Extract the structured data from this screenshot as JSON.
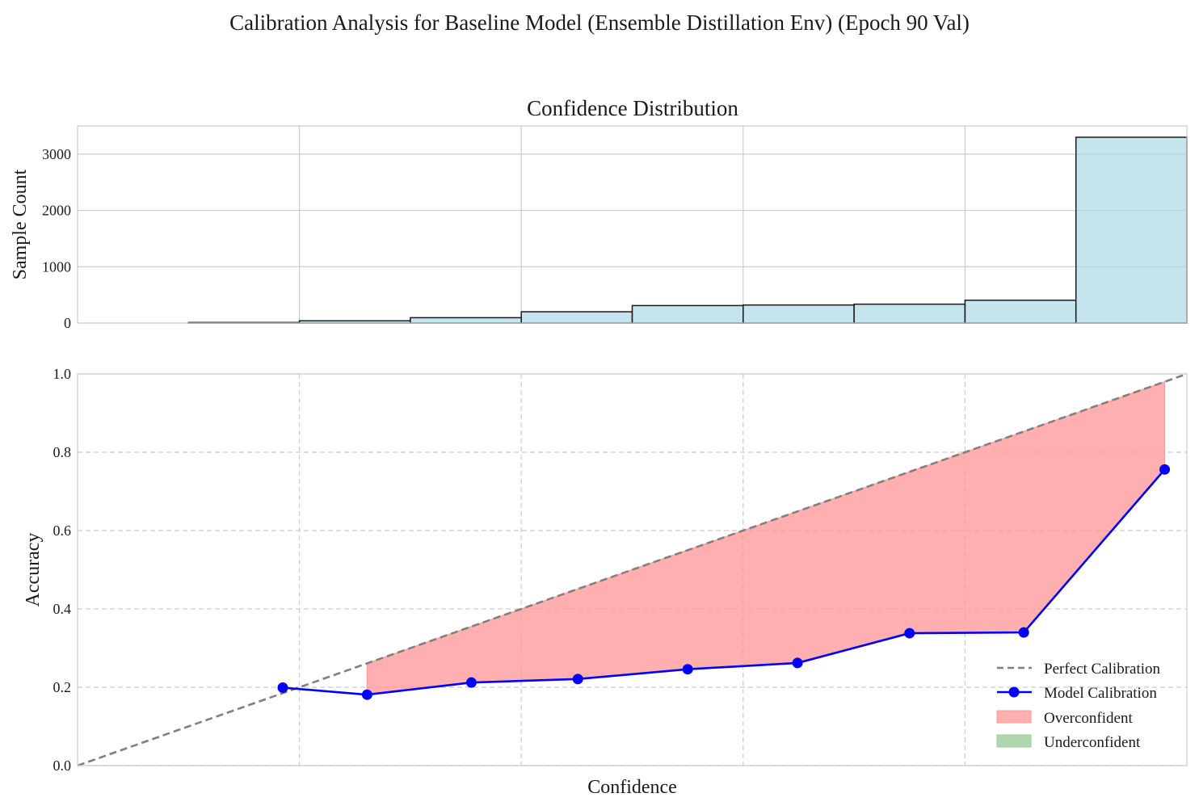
{
  "suptitle": "Calibration Analysis for Baseline Model (Ensemble Distillation Env) (Epoch 90 Val)",
  "colors": {
    "hist_fill": "#add8e6",
    "hist_edge": "#1a1a1a",
    "model_line": "#0000ff",
    "perfect_line": "#808080",
    "overconfident": "#ff9999",
    "underconfident": "#99cc99",
    "grid": "#cccccc"
  },
  "chart_data": [
    {
      "type": "bar",
      "title": "Confidence Distribution",
      "xlabel": "",
      "ylabel": "Sample Count",
      "bin_edges": [
        0.0,
        0.1,
        0.2,
        0.3,
        0.4,
        0.5,
        0.6,
        0.7,
        0.8,
        0.9,
        1.0
      ],
      "values": [
        0,
        10,
        40,
        95,
        200,
        310,
        320,
        335,
        405,
        3300
      ],
      "xlim": [
        0.0,
        1.0
      ],
      "ylim": [
        0,
        3500
      ],
      "yticks": [
        "0",
        "1000",
        "2000",
        "3000"
      ],
      "grid": true
    },
    {
      "type": "line",
      "title": "",
      "xlabel": "Confidence",
      "ylabel": "Accuracy",
      "xlim": [
        0.0,
        1.0
      ],
      "ylim": [
        0.0,
        1.0
      ],
      "yticks": [
        "0.0",
        "0.2",
        "0.4",
        "0.6",
        "0.8",
        "1.0"
      ],
      "grid": true,
      "legend_position": "lower-right",
      "series": [
        {
          "name": "Perfect Calibration",
          "style": "dashed",
          "x": [
            0.0,
            1.0
          ],
          "y": [
            0.0,
            1.0
          ]
        },
        {
          "name": "Model Calibration",
          "style": "line-marker",
          "x": [
            0.185,
            0.261,
            0.355,
            0.451,
            0.55,
            0.649,
            0.75,
            0.853,
            0.98
          ],
          "y": [
            0.199,
            0.181,
            0.212,
            0.221,
            0.246,
            0.262,
            0.338,
            0.34,
            0.756
          ]
        }
      ],
      "fill_legend": [
        {
          "name": "Overconfident"
        },
        {
          "name": "Underconfident"
        }
      ]
    }
  ]
}
